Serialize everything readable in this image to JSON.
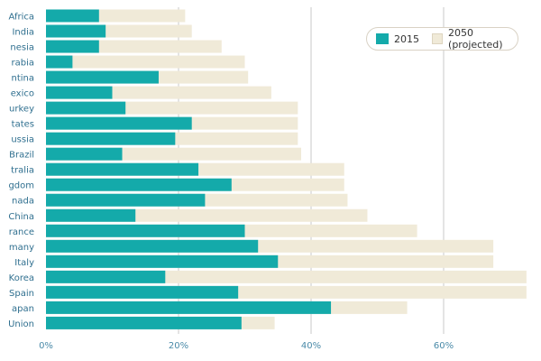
{
  "chart_data": {
    "type": "bar",
    "orientation": "horizontal",
    "categories": [
      "Africa",
      "India",
      "Indonesia",
      "Saudi Arabia",
      "Argentina",
      "Mexico",
      "Turkey",
      "United States",
      "Russia",
      "Brazil",
      "Australia",
      "United Kingdom",
      "Canada",
      "China",
      "France",
      "Germany",
      "Italy",
      "Korea",
      "Spain",
      "Japan",
      "European Union"
    ],
    "category_labels_visible": [
      "Africa",
      "India",
      "nesia",
      "rabia",
      "ntina",
      "exico",
      "urkey",
      "tates",
      "ussia",
      "Brazil",
      "tralia",
      "gdom",
      "nada",
      "China",
      "rance",
      "many",
      "Italy",
      "Korea",
      "Spain",
      "apan",
      "Union"
    ],
    "series": [
      {
        "name": "2015",
        "color": "#14aaaa",
        "values": [
          8,
          9,
          8,
          4,
          17,
          10,
          12,
          22,
          19.5,
          11.5,
          23,
          28,
          24,
          13.5,
          30,
          32,
          35,
          18,
          29,
          43,
          29.5
        ]
      },
      {
        "name": "2050 (projected)",
        "color": "#f0ead8",
        "values": [
          21,
          22,
          26.5,
          30,
          30.5,
          34,
          38,
          38,
          38,
          38.5,
          45,
          45,
          45.5,
          48.5,
          56,
          67.5,
          67.5,
          72.5,
          72.5,
          54.5,
          34.5
        ]
      }
    ],
    "xlim": [
      -7,
      73
    ],
    "xticks": [
      0,
      20,
      40,
      60
    ],
    "xtick_labels": [
      "0%",
      "20%",
      "40%",
      "60%"
    ],
    "grid": "vertical",
    "legend": "top-right",
    "title": "",
    "xlabel": "",
    "ylabel": ""
  }
}
